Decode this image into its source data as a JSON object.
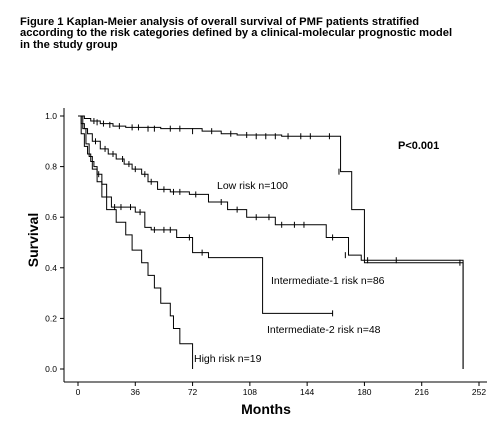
{
  "figure_title_lines": [
    "Figure 1 Kaplan-Meier analysis of overall survival of PMF patients stratified",
    "according to the risk categories defined by a clinical-molecular prognostic model",
    "in the study group"
  ],
  "chart_data": {
    "type": "line",
    "title": "Figure 1 Kaplan-Meier analysis of overall survival of PMF patients stratified according to the risk categories defined by a clinical-molecular prognostic model in the study group",
    "xlabel": "Months",
    "ylabel": "Survival",
    "xlim": [
      0,
      252
    ],
    "ylim": [
      0,
      1.0
    ],
    "xticks": [
      0,
      36,
      72,
      108,
      144,
      180,
      216,
      252
    ],
    "yticks": [
      0.0,
      0.2,
      0.4,
      0.6,
      0.8,
      1.0
    ],
    "xtick_labels": [
      "0",
      "36",
      "72",
      "108",
      "144",
      "180",
      "216",
      "252"
    ],
    "ytick_labels": [
      "0.0",
      "0.2",
      "0.4",
      "0.6",
      "0.8",
      "1.0"
    ],
    "grid": false,
    "annotation": "P<0.001",
    "series": [
      {
        "name": "Low risk n=100",
        "steps": [
          [
            0,
            1.0
          ],
          [
            4,
            0.99
          ],
          [
            8,
            0.98
          ],
          [
            14,
            0.97
          ],
          [
            22,
            0.96
          ],
          [
            30,
            0.955
          ],
          [
            52,
            0.95
          ],
          [
            78,
            0.94
          ],
          [
            90,
            0.93
          ],
          [
            100,
            0.925
          ],
          [
            128,
            0.92
          ],
          [
            165,
            0.78
          ],
          [
            172,
            0.63
          ],
          [
            180,
            0.42
          ],
          [
            242,
            0.42
          ],
          [
            242,
            0.0
          ]
        ],
        "censored": [
          [
            10,
            0.98
          ],
          [
            12,
            0.975
          ],
          [
            16,
            0.97
          ],
          [
            20,
            0.965
          ],
          [
            26,
            0.96
          ],
          [
            34,
            0.955
          ],
          [
            38,
            0.955
          ],
          [
            44,
            0.95
          ],
          [
            48,
            0.95
          ],
          [
            58,
            0.95
          ],
          [
            64,
            0.95
          ],
          [
            72,
            0.94
          ],
          [
            84,
            0.94
          ],
          [
            96,
            0.93
          ],
          [
            106,
            0.925
          ],
          [
            112,
            0.92
          ],
          [
            118,
            0.92
          ],
          [
            124,
            0.92
          ],
          [
            132,
            0.92
          ],
          [
            140,
            0.92
          ],
          [
            146,
            0.92
          ],
          [
            158,
            0.92
          ],
          [
            164,
            0.78
          ],
          [
            240,
            0.42
          ]
        ]
      },
      {
        "name": "Intermediate-1 risk n=86",
        "steps": [
          [
            0,
            1.0
          ],
          [
            2,
            0.97
          ],
          [
            4,
            0.95
          ],
          [
            6,
            0.93
          ],
          [
            9,
            0.9
          ],
          [
            14,
            0.87
          ],
          [
            19,
            0.85
          ],
          [
            24,
            0.83
          ],
          [
            29,
            0.81
          ],
          [
            34,
            0.79
          ],
          [
            40,
            0.77
          ],
          [
            44,
            0.74
          ],
          [
            50,
            0.71
          ],
          [
            58,
            0.7
          ],
          [
            70,
            0.69
          ],
          [
            82,
            0.66
          ],
          [
            94,
            0.63
          ],
          [
            106,
            0.6
          ],
          [
            124,
            0.57
          ],
          [
            156,
            0.52
          ],
          [
            170,
            0.45
          ],
          [
            178,
            0.43
          ],
          [
            242,
            0.42
          ],
          [
            242,
            0.0
          ]
        ],
        "censored": [
          [
            11,
            0.9
          ],
          [
            17,
            0.87
          ],
          [
            22,
            0.85
          ],
          [
            28,
            0.83
          ],
          [
            32,
            0.81
          ],
          [
            36,
            0.79
          ],
          [
            42,
            0.77
          ],
          [
            46,
            0.74
          ],
          [
            54,
            0.71
          ],
          [
            60,
            0.7
          ],
          [
            64,
            0.7
          ],
          [
            74,
            0.69
          ],
          [
            90,
            0.66
          ],
          [
            100,
            0.63
          ],
          [
            112,
            0.6
          ],
          [
            120,
            0.6
          ],
          [
            128,
            0.57
          ],
          [
            136,
            0.57
          ],
          [
            142,
            0.57
          ],
          [
            160,
            0.52
          ],
          [
            168,
            0.45
          ],
          [
            182,
            0.43
          ],
          [
            200,
            0.43
          ]
        ]
      },
      {
        "name": "Intermediate-2 risk n=48",
        "steps": [
          [
            0,
            1.0
          ],
          [
            2,
            0.93
          ],
          [
            4,
            0.88
          ],
          [
            6,
            0.85
          ],
          [
            8,
            0.82
          ],
          [
            10,
            0.8
          ],
          [
            12,
            0.77
          ],
          [
            15,
            0.73
          ],
          [
            18,
            0.68
          ],
          [
            21,
            0.64
          ],
          [
            36,
            0.62
          ],
          [
            42,
            0.56
          ],
          [
            46,
            0.55
          ],
          [
            62,
            0.52
          ],
          [
            72,
            0.46
          ],
          [
            82,
            0.44
          ],
          [
            108,
            0.44
          ],
          [
            116,
            0.22
          ],
          [
            160,
            0.22
          ]
        ],
        "censored": [
          [
            13,
            0.77
          ],
          [
            23,
            0.64
          ],
          [
            27,
            0.64
          ],
          [
            33,
            0.64
          ],
          [
            39,
            0.62
          ],
          [
            48,
            0.55
          ],
          [
            54,
            0.55
          ],
          [
            58,
            0.55
          ],
          [
            70,
            0.52
          ],
          [
            78,
            0.46
          ],
          [
            160,
            0.22
          ]
        ]
      },
      {
        "name": "High risk n=19",
        "steps": [
          [
            0,
            1.0
          ],
          [
            3,
            0.95
          ],
          [
            5,
            0.89
          ],
          [
            7,
            0.84
          ],
          [
            9,
            0.79
          ],
          [
            12,
            0.74
          ],
          [
            15,
            0.68
          ],
          [
            18,
            0.63
          ],
          [
            24,
            0.58
          ],
          [
            30,
            0.53
          ],
          [
            34,
            0.47
          ],
          [
            40,
            0.42
          ],
          [
            44,
            0.37
          ],
          [
            48,
            0.32
          ],
          [
            52,
            0.26
          ],
          [
            58,
            0.21
          ],
          [
            60,
            0.16
          ],
          [
            64,
            0.1
          ],
          [
            72,
            0.0
          ]
        ],
        "censored": []
      }
    ]
  }
}
